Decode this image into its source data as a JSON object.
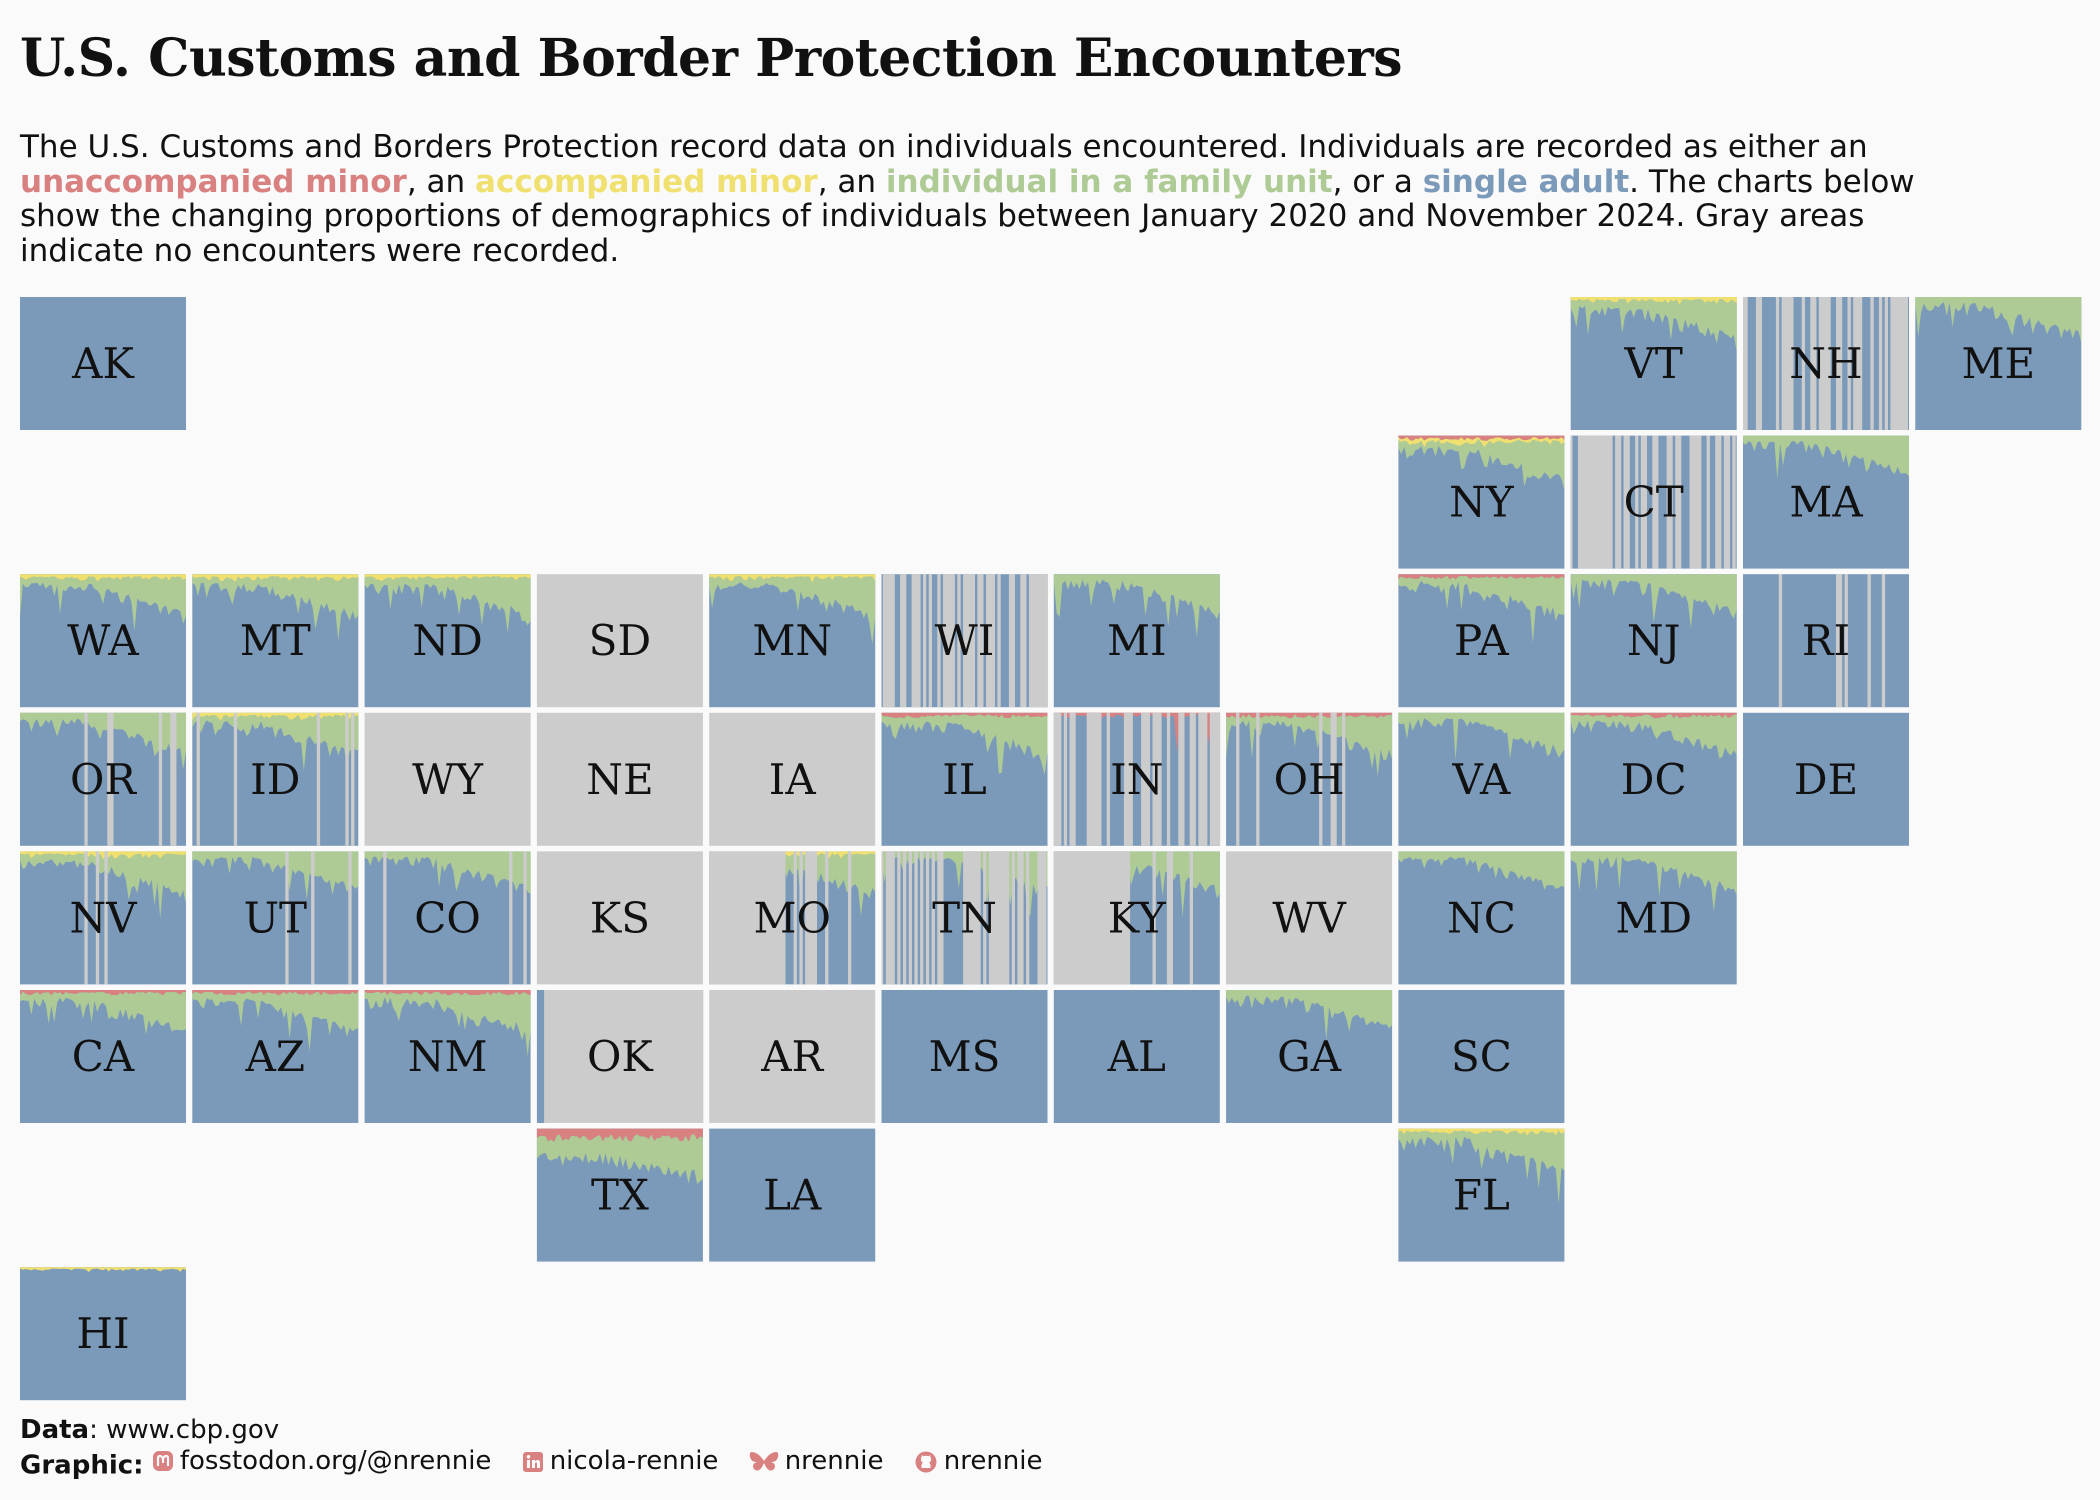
{
  "title": "U.S. Customs and Border Protection Encounters",
  "subtitle": {
    "p1": "The U.S. Customs and Borders Protection record data on individuals encountered. Individuals are recorded as either an ",
    "cat1": "unaccompanied minor",
    "p2": ", an ",
    "cat2": "accompanied minor",
    "p3": ", an ",
    "cat3": "individual in a family unit",
    "p4": ", or a ",
    "cat4": "single adult",
    "p5": ".  The charts below show the changing proportions of demographics of individuals between January 2020 and November 2024. Gray areas indicate no encounters were recorded."
  },
  "colors": {
    "unaccompanied_minor": "#d98080",
    "accompanied_minor": "#f0e070",
    "family_unit": "#aecb96",
    "single_adult": "#7b9aba",
    "no_data": "#cccccc",
    "background": "#fafafa"
  },
  "caption": {
    "data_label": "Data",
    "data_value": ": www.cbp.gov",
    "graphic_label": "Graphic",
    "mastodon": "fosstodon.org/@nrennie",
    "linkedin": "nicola-rennie",
    "bluesky": "nrennie",
    "github": "nrennie",
    "icons": [
      "mastodon-icon",
      "linkedin-icon",
      "bluesky-icon",
      "github-icon"
    ]
  },
  "chart_data": {
    "type": "area",
    "stacking": "proportion",
    "layout": "US state tile grid map",
    "x_range": [
      "January 2020",
      "November 2024"
    ],
    "series_order": [
      "unaccompanied minor",
      "accompanied minor",
      "individual in a family unit",
      "single adult"
    ],
    "states": [
      {
        "code": "AK",
        "profile": "adult",
        "gaps": "none"
      },
      {
        "code": "VT",
        "profile": "family_acc",
        "gaps": "none"
      },
      {
        "code": "NH",
        "profile": "adult",
        "gaps": "heavy"
      },
      {
        "code": "ME",
        "profile": "family",
        "gaps": "none"
      },
      {
        "code": "NY",
        "profile": "family_acc_um",
        "gaps": "none"
      },
      {
        "code": "CT",
        "profile": "adult",
        "gaps": "heavy"
      },
      {
        "code": "MA",
        "profile": "family",
        "gaps": "none"
      },
      {
        "code": "WA",
        "profile": "family_acc",
        "gaps": "none"
      },
      {
        "code": "MT",
        "profile": "family_acc",
        "gaps": "none"
      },
      {
        "code": "ND",
        "profile": "family_acc",
        "gaps": "none"
      },
      {
        "code": "SD",
        "profile": "none",
        "gaps": "all"
      },
      {
        "code": "MN",
        "profile": "family_acc",
        "gaps": "none"
      },
      {
        "code": "WI",
        "profile": "adult",
        "gaps": "heavy"
      },
      {
        "code": "MI",
        "profile": "family",
        "gaps": "none"
      },
      {
        "code": "PA",
        "profile": "family_um",
        "gaps": "none"
      },
      {
        "code": "NJ",
        "profile": "family",
        "gaps": "none"
      },
      {
        "code": "RI",
        "profile": "adult",
        "gaps": "light"
      },
      {
        "code": "OR",
        "profile": "family",
        "gaps": "light"
      },
      {
        "code": "ID",
        "profile": "family_acc",
        "gaps": "light"
      },
      {
        "code": "WY",
        "profile": "none",
        "gaps": "all"
      },
      {
        "code": "NE",
        "profile": "none",
        "gaps": "all"
      },
      {
        "code": "IA",
        "profile": "none",
        "gaps": "all"
      },
      {
        "code": "IL",
        "profile": "family_um",
        "gaps": "none"
      },
      {
        "code": "IN",
        "profile": "adult_um",
        "gaps": "heavy"
      },
      {
        "code": "OH",
        "profile": "family_um",
        "gaps": "light"
      },
      {
        "code": "VA",
        "profile": "family",
        "gaps": "none"
      },
      {
        "code": "DC",
        "profile": "family_um",
        "gaps": "none"
      },
      {
        "code": "DE",
        "profile": "adult",
        "gaps": "none"
      },
      {
        "code": "NV",
        "profile": "family_acc",
        "gaps": "light"
      },
      {
        "code": "UT",
        "profile": "family",
        "gaps": "light"
      },
      {
        "code": "CO",
        "profile": "family",
        "gaps": "light"
      },
      {
        "code": "KS",
        "profile": "none",
        "gaps": "all"
      },
      {
        "code": "MO",
        "profile": "family_acc",
        "gaps": "late"
      },
      {
        "code": "TN",
        "profile": "family",
        "gaps": "heavy"
      },
      {
        "code": "KY",
        "profile": "family",
        "gaps": "late"
      },
      {
        "code": "WV",
        "profile": "none",
        "gaps": "all"
      },
      {
        "code": "NC",
        "profile": "family",
        "gaps": "none"
      },
      {
        "code": "MD",
        "profile": "family",
        "gaps": "none"
      },
      {
        "code": "CA",
        "profile": "family_um",
        "gaps": "none"
      },
      {
        "code": "AZ",
        "profile": "family_um",
        "gaps": "none"
      },
      {
        "code": "NM",
        "profile": "family_um",
        "gaps": "none"
      },
      {
        "code": "OK",
        "profile": "adult",
        "gaps": "mostly"
      },
      {
        "code": "AR",
        "profile": "none",
        "gaps": "all"
      },
      {
        "code": "MS",
        "profile": "adult",
        "gaps": "none"
      },
      {
        "code": "AL",
        "profile": "adult",
        "gaps": "none"
      },
      {
        "code": "GA",
        "profile": "family",
        "gaps": "none"
      },
      {
        "code": "SC",
        "profile": "adult",
        "gaps": "none"
      },
      {
        "code": "TX",
        "profile": "family_um_heavy",
        "gaps": "none"
      },
      {
        "code": "LA",
        "profile": "adult",
        "gaps": "none"
      },
      {
        "code": "FL",
        "profile": "family_acc",
        "gaps": "none"
      },
      {
        "code": "HI",
        "profile": "adult_acc",
        "gaps": "none"
      }
    ]
  }
}
